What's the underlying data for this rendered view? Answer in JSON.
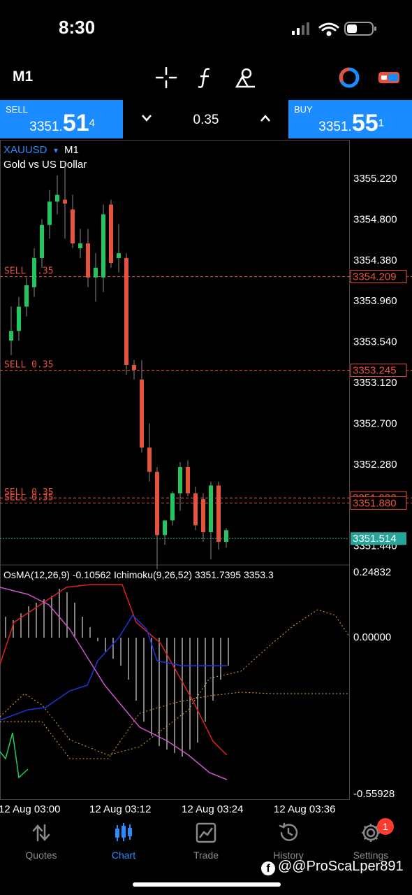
{
  "status_bar": {
    "time": "8:30"
  },
  "toolbar": {
    "timeframe": "M1"
  },
  "trade_bar": {
    "sell_label": "SELL",
    "sell_price_main": "3351.",
    "sell_price_big": "51",
    "sell_price_sup": "4",
    "lot": "0.35",
    "buy_label": "BUY",
    "buy_price_main": "3351.",
    "buy_price_big": "55",
    "buy_price_sup": "1"
  },
  "chart": {
    "symbol": "XAUUSD",
    "symbol_caret": "▾",
    "timeframe": "M1",
    "description": "Gold vs US Dollar",
    "price_labels": [
      "3355.220",
      "3354.800",
      "3354.380",
      "3353.960",
      "3353.540",
      "3353.120",
      "3352.700",
      "3352.280",
      "3351.860",
      "3351.440"
    ],
    "orders": [
      {
        "label": "SELL 0.35",
        "price": "3354.209",
        "value": 3354.209
      },
      {
        "label": "SELL 0.35",
        "price": "3353.245",
        "value": 3353.245
      },
      {
        "label": "SELL 0.35",
        "price": "3351.932",
        "value": 3351.932
      },
      {
        "label": "SELL 0.35",
        "price": "3351.880",
        "value": 3351.88
      }
    ],
    "bid_price": "3351.514",
    "bid_value": 3351.514,
    "colors": {
      "bull": "#22c55e",
      "bear": "#e5533d",
      "order": "#e5533d",
      "bid": "#26a69a"
    }
  },
  "chart_data": {
    "type": "candlestick",
    "ylim": [
      3351.3,
      3355.4
    ],
    "candles": [
      {
        "o": 3353.55,
        "h": 3353.9,
        "l": 3353.4,
        "c": 3353.65
      },
      {
        "o": 3353.65,
        "h": 3354.0,
        "l": 3353.55,
        "c": 3353.9
      },
      {
        "o": 3353.9,
        "h": 3354.2,
        "l": 3353.8,
        "c": 3354.12
      },
      {
        "o": 3354.1,
        "h": 3354.5,
        "l": 3354.0,
        "c": 3354.4
      },
      {
        "o": 3354.4,
        "h": 3354.8,
        "l": 3354.3,
        "c": 3354.74
      },
      {
        "o": 3354.74,
        "h": 3355.1,
        "l": 3354.6,
        "c": 3354.98
      },
      {
        "o": 3354.98,
        "h": 3355.25,
        "l": 3354.85,
        "c": 3355.05
      },
      {
        "o": 3355.0,
        "h": 3355.4,
        "l": 3354.6,
        "c": 3354.96
      },
      {
        "o": 3354.9,
        "h": 3355.05,
        "l": 3354.5,
        "c": 3354.55
      },
      {
        "o": 3354.5,
        "h": 3354.7,
        "l": 3354.4,
        "c": 3354.55
      },
      {
        "o": 3354.55,
        "h": 3354.7,
        "l": 3354.1,
        "c": 3354.2
      },
      {
        "o": 3354.2,
        "h": 3354.45,
        "l": 3353.95,
        "c": 3354.3
      },
      {
        "o": 3354.2,
        "h": 3354.95,
        "l": 3354.05,
        "c": 3354.85
      },
      {
        "o": 3354.95,
        "h": 3355.0,
        "l": 3354.3,
        "c": 3354.35
      },
      {
        "o": 3354.4,
        "h": 3354.75,
        "l": 3354.25,
        "c": 3354.45
      },
      {
        "o": 3354.4,
        "h": 3354.45,
        "l": 3353.2,
        "c": 3353.3
      },
      {
        "o": 3353.3,
        "h": 3353.35,
        "l": 3353.15,
        "c": 3353.25
      },
      {
        "o": 3353.15,
        "h": 3353.35,
        "l": 3352.4,
        "c": 3352.45
      },
      {
        "o": 3352.45,
        "h": 3352.7,
        "l": 3352.1,
        "c": 3352.2
      },
      {
        "o": 3352.2,
        "h": 3352.25,
        "l": 3351.2,
        "c": 3351.55
      },
      {
        "o": 3351.55,
        "h": 3351.7,
        "l": 3351.45,
        "c": 3351.7
      },
      {
        "o": 3351.7,
        "h": 3352.0,
        "l": 3351.65,
        "c": 3351.98
      },
      {
        "o": 3351.98,
        "h": 3352.3,
        "l": 3351.8,
        "c": 3352.25
      },
      {
        "o": 3352.25,
        "h": 3352.32,
        "l": 3351.95,
        "c": 3351.98
      },
      {
        "o": 3351.98,
        "h": 3352.05,
        "l": 3351.6,
        "c": 3351.65
      },
      {
        "o": 3351.92,
        "h": 3351.98,
        "l": 3351.48,
        "c": 3351.58
      },
      {
        "o": 3351.58,
        "h": 3352.1,
        "l": 3351.3,
        "c": 3352.06
      },
      {
        "o": 3352.06,
        "h": 3352.1,
        "l": 3351.4,
        "c": 3351.48
      },
      {
        "o": 3351.48,
        "h": 3351.62,
        "l": 3351.42,
        "c": 3351.6
      }
    ]
  },
  "indicator": {
    "title": "OsMA(12,26,9) -0.10562 Ichimoku(9,26,52) 3351.7395 3353.3",
    "axis_labels": [
      "0.24832",
      "0.00000",
      "-0.55928"
    ]
  },
  "time_axis": [
    "12 Aug 03:00",
    "12 Aug 03:12",
    "12 Aug 03:24",
    "12 Aug 03:36"
  ],
  "bottom_nav": {
    "items": [
      {
        "label": "Quotes"
      },
      {
        "label": "Chart"
      },
      {
        "label": "Trade"
      },
      {
        "label": "History"
      },
      {
        "label": "Settings"
      }
    ],
    "settings_badge": "1"
  },
  "watermark": "@@ProScaLper891"
}
